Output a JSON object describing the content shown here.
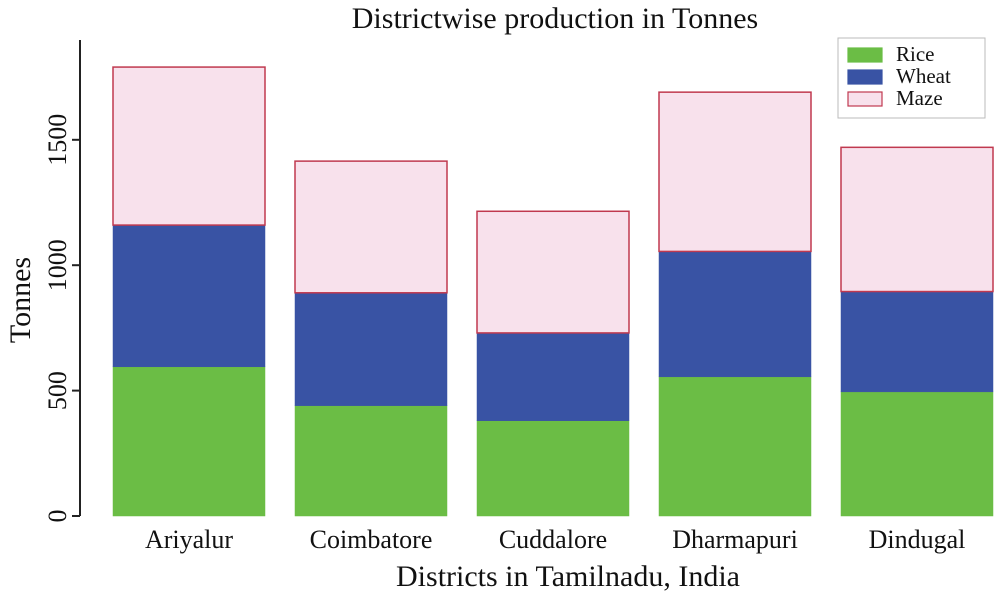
{
  "chart_data": {
    "type": "bar",
    "stacked": true,
    "title": "Districtwise production in Tonnes",
    "xlabel": "Districts in Tamilnadu, India",
    "ylabel": "Tonnes",
    "categories": [
      "Ariyalur",
      "Coimbatore",
      "Cuddalore",
      "Dharmapuri",
      "Dindugal"
    ],
    "series": [
      {
        "name": "Rice",
        "values": [
          595,
          440,
          380,
          555,
          495
        ],
        "color": "#6bbd45",
        "border": "#6bbd45"
      },
      {
        "name": "Wheat",
        "values": [
          565,
          450,
          350,
          500,
          400
        ],
        "color": "#3953a4",
        "border": "#3953a4"
      },
      {
        "name": "Maze",
        "values": [
          630,
          525,
          485,
          635,
          575
        ],
        "color": "#f8e1ec",
        "border": "#c0394f"
      }
    ],
    "yticks": [
      0,
      500,
      1000,
      1500
    ],
    "ylim": [
      0,
      1900
    ],
    "grid": false,
    "legend_position": "top-right"
  }
}
